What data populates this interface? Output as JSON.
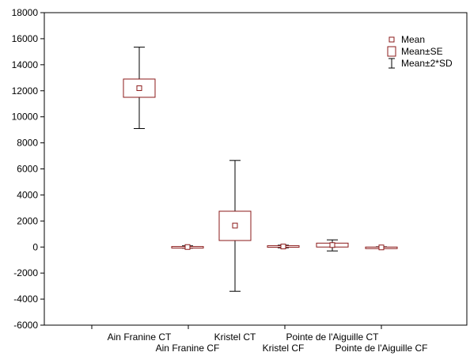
{
  "chart_data": {
    "type": "box",
    "title": "",
    "xlabel": "",
    "ylabel": "",
    "ylim": [
      -6000,
      18000
    ],
    "yticks": [
      -6000,
      -4000,
      -2000,
      0,
      2000,
      4000,
      6000,
      8000,
      10000,
      12000,
      14000,
      16000,
      18000
    ],
    "categories": [
      "Ain Franine CT",
      "Ain Franine CF",
      "Kristel CT",
      "Kristel CF",
      "Pointe de l'Aiguille CT",
      "Pointe de l'Aiguille CF"
    ],
    "series": [
      {
        "category": "Ain Franine CT",
        "mean": 12200,
        "mean_minus_se": 11500,
        "mean_plus_se": 12900,
        "mean_minus_2sd": 9100,
        "mean_plus_2sd": 15350
      },
      {
        "category": "Ain Franine CF",
        "mean": 0,
        "mean_minus_se": -40,
        "mean_plus_se": 40,
        "mean_minus_2sd": -90,
        "mean_plus_2sd": 90
      },
      {
        "category": "Kristel CT",
        "mean": 1650,
        "mean_minus_se": 500,
        "mean_plus_se": 2750,
        "mean_minus_2sd": -3400,
        "mean_plus_2sd": 6650
      },
      {
        "category": "Kristel CF",
        "mean": 40,
        "mean_minus_se": -20,
        "mean_plus_se": 100,
        "mean_minus_2sd": -60,
        "mean_plus_2sd": 140
      },
      {
        "category": "Pointe de l'Aiguille CT",
        "mean": 150,
        "mean_minus_se": 0,
        "mean_plus_se": 300,
        "mean_minus_2sd": -300,
        "mean_plus_2sd": 550
      },
      {
        "category": "Pointe de l'Aiguille CF",
        "mean": -30,
        "mean_minus_se": -60,
        "mean_plus_se": 0,
        "mean_minus_2sd": -80,
        "mean_plus_2sd": 20
      }
    ],
    "legend": {
      "placement": "top-right",
      "items": [
        "Mean",
        "Mean±SE",
        "Mean±2*SD"
      ]
    },
    "grid": false,
    "colors": {
      "box": "#8b1a1a",
      "whisker": "#000000",
      "axis": "#000000"
    }
  }
}
